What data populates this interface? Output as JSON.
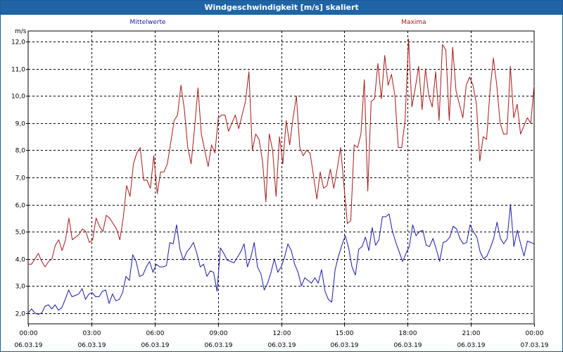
{
  "window": {
    "title": "Windgeschwindigkeit [m/s] skaliert"
  },
  "chart_data": {
    "type": "line",
    "title": "Windgeschwindigkeit [m/s] skaliert",
    "ylabel": "m/s",
    "ylim": [
      1.6,
      12.4
    ],
    "yticks": [
      "2,0",
      "3,0",
      "4,0",
      "5,0",
      "6,0",
      "7,0",
      "8,0",
      "9,0",
      "10,0",
      "11,0",
      "12,0"
    ],
    "ytick_values": [
      2,
      3,
      4,
      5,
      6,
      7,
      8,
      9,
      10,
      11,
      12
    ],
    "xlim": [
      0,
      24
    ],
    "xticks": [
      {
        "time": "00:00",
        "date": "06.03.19"
      },
      {
        "time": "03:00",
        "date": "06.03.19"
      },
      {
        "time": "06:00",
        "date": "06.03.19"
      },
      {
        "time": "09:00",
        "date": "06.03.19"
      },
      {
        "time": "12:00",
        "date": "06.03.19"
      },
      {
        "time": "15:00",
        "date": "06.03.19"
      },
      {
        "time": "18:00",
        "date": "06.03.19"
      },
      {
        "time": "21:00",
        "date": "06.03.19"
      },
      {
        "time": "00:00",
        "date": "07.03.19"
      }
    ],
    "grid": true,
    "series": [
      {
        "name": "Mittelwerte",
        "color": "#1a1aa8",
        "values": [
          2.0,
          2.15,
          2.0,
          1.95,
          2.0,
          2.25,
          2.3,
          2.15,
          2.3,
          2.1,
          2.2,
          2.5,
          2.85,
          2.6,
          2.65,
          2.7,
          2.9,
          2.5,
          2.7,
          2.75,
          2.6,
          2.6,
          2.8,
          2.85,
          2.35,
          2.7,
          2.45,
          2.5,
          2.75,
          3.35,
          3.2,
          4.15,
          3.9,
          3.35,
          3.4,
          3.7,
          3.9,
          3.5,
          3.8,
          3.7,
          3.7,
          3.75,
          4.6,
          4.55,
          5.25,
          4.35,
          3.95,
          4.25,
          4.4,
          4.6,
          4.2,
          3.7,
          3.8,
          3.35,
          3.55,
          3.5,
          2.8,
          4.4,
          4.2,
          3.95,
          3.9,
          3.85,
          4.05,
          4.25,
          4.55,
          3.7,
          4.05,
          4.6,
          3.7,
          3.45,
          2.85,
          3.1,
          3.5,
          4.0,
          3.5,
          3.7,
          4.05,
          4.55,
          4.3,
          3.8,
          3.5,
          3.0,
          3.3,
          3.2,
          3.1,
          3.3,
          3.1,
          3.6,
          2.8,
          2.5,
          2.4,
          3.6,
          4.1,
          4.5,
          4.85,
          4.4,
          3.7,
          3.4,
          4.35,
          4.45,
          4.8,
          4.3,
          5.15,
          4.5,
          4.7,
          5.55,
          5.55,
          5.65,
          5.0,
          4.6,
          4.25,
          3.9,
          4.2,
          4.45,
          5.25,
          4.85,
          5.0,
          5.05,
          4.5,
          4.45,
          4.75,
          4.35,
          3.9,
          4.6,
          4.65,
          4.8,
          5.2,
          5.1,
          4.75,
          4.55,
          4.6,
          5.25,
          5.0,
          4.8,
          4.25,
          4.0,
          4.1,
          4.4,
          4.75,
          5.35,
          4.75,
          4.55,
          4.75,
          6.0,
          4.45,
          5.05,
          4.55,
          4.1,
          4.65,
          4.6,
          4.55
        ]
      },
      {
        "name": "Maxima",
        "color": "#a81818",
        "values": [
          3.8,
          3.8,
          4.0,
          4.2,
          3.9,
          3.7,
          3.9,
          4.0,
          4.5,
          4.7,
          4.3,
          4.7,
          5.5,
          4.7,
          4.8,
          4.9,
          5.1,
          5.0,
          4.6,
          4.7,
          5.5,
          5.2,
          5.0,
          5.6,
          5.5,
          5.3,
          5.1,
          4.7,
          5.5,
          6.7,
          6.3,
          7.5,
          7.9,
          8.1,
          6.9,
          6.9,
          6.6,
          7.8,
          6.4,
          7.2,
          7.2,
          7.5,
          8.3,
          9.1,
          9.3,
          10.4,
          9.5,
          8.1,
          7.5,
          8.8,
          10.3,
          8.6,
          8.0,
          7.4,
          8.2,
          7.9,
          9.2,
          9.3,
          9.3,
          8.7,
          9.0,
          9.3,
          8.8,
          9.3,
          9.8,
          10.9,
          8.0,
          8.6,
          8.4,
          7.6,
          6.1,
          8.6,
          8.0,
          6.3,
          8.5,
          7.5,
          9.1,
          8.2,
          9.2,
          10.0,
          8.1,
          7.8,
          8.0,
          7.9,
          7.1,
          6.2,
          7.2,
          6.6,
          6.7,
          7.3,
          6.6,
          7.3,
          8.1,
          6.7,
          5.3,
          5.4,
          8.2,
          8.1,
          8.6,
          10.6,
          6.5,
          9.8,
          9.9,
          11.2,
          9.9,
          11.5,
          10.4,
          10.8,
          10.0,
          8.1,
          8.1,
          9.1,
          12.1,
          9.6,
          10.3,
          11.1,
          9.5,
          11.0,
          10.0,
          9.6,
          10.9,
          9.1,
          11.9,
          11.7,
          9.1,
          11.8,
          10.2,
          9.7,
          9.2,
          10.4,
          10.7,
          10.4,
          9.7,
          7.6,
          8.5,
          8.4,
          10.2,
          11.4,
          10.4,
          9.0,
          8.6,
          8.6,
          11.1,
          9.2,
          9.7,
          8.6,
          8.9,
          9.2,
          9.0,
          10.4
        ]
      }
    ]
  }
}
